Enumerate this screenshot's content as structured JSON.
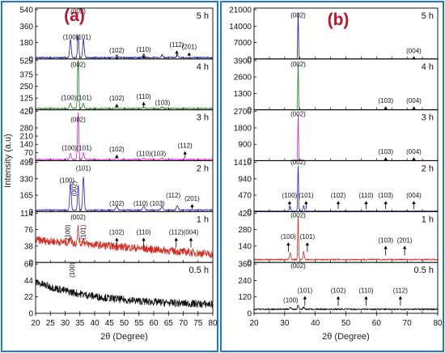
{
  "chart_data": [
    {
      "type": "line",
      "panel_label": "(a)",
      "xlabel": "2θ (Degree)",
      "ylabel": "Intensity (a.u)",
      "xlim": [
        20,
        80
      ],
      "x_ticks": [
        "20",
        "25",
        "30",
        "35",
        "40",
        "45",
        "50",
        "55",
        "60",
        "65",
        "70",
        "75",
        "80"
      ],
      "subplots": [
        {
          "name": "5 h",
          "color": "#1a1aa8",
          "ylim": [
            0,
            540
          ],
          "y_ticks": [
            "0",
            "180",
            "360",
            "540"
          ],
          "baseline": 15,
          "noise": 7,
          "decay": 0,
          "ramp": 0,
          "peaks": [
            [
              31.8,
              200,
              0.25
            ],
            [
              34.4,
              240,
              0.22
            ],
            [
              36.2,
              200,
              0.25
            ],
            [
              47.5,
              25,
              0.3
            ],
            [
              56.6,
              38,
              0.3
            ],
            [
              62.8,
              30,
              0.3
            ],
            [
              68.0,
              28,
              0.3
            ]
          ],
          "annotations": [
            {
              "label": "(100)",
              "x": 31.8,
              "value": 215,
              "arrow": false
            },
            {
              "label": "(002)",
              "x": 34.4,
              "value": 500,
              "arrow": false
            },
            {
              "label": "(101)",
              "x": 36.2,
              "value": 215,
              "arrow": false
            },
            {
              "label": "(102)",
              "x": 47.5,
              "value": 70,
              "arrow": true
            },
            {
              "label": "(110)",
              "x": 56.6,
              "value": 80,
              "arrow": true
            },
            {
              "label": "(112)",
              "x": 67.8,
              "value": 130,
              "arrow": true
            },
            {
              "label": "(201)",
              "x": 72.0,
              "value": 110,
              "arrow": true
            }
          ]
        },
        {
          "name": "4 h",
          "color": "#18851f",
          "ylim": [
            0,
            525
          ],
          "y_ticks": [
            "0",
            "125",
            "250",
            "375",
            "525"
          ],
          "baseline": 15,
          "noise": 6,
          "decay": 0,
          "ramp": 0,
          "peaks": [
            [
              31.8,
              60,
              0.25
            ],
            [
              34.4,
              510,
              0.22
            ],
            [
              36.2,
              55,
              0.25
            ],
            [
              47.5,
              10,
              0.3
            ],
            [
              56.6,
              12,
              0.3
            ],
            [
              62.8,
              15,
              0.3
            ]
          ],
          "annotations": [
            {
              "label": "(100)",
              "x": 31.2,
              "value": 105,
              "arrow": false
            },
            {
              "label": "(002)",
              "x": 34.4,
              "value": 460,
              "arrow": false
            },
            {
              "label": "(101)",
              "x": 36.4,
              "value": 105,
              "arrow": false
            },
            {
              "label": "(102)",
              "x": 47.5,
              "value": 100,
              "arrow": true
            },
            {
              "label": "(110)",
              "x": 56.6,
              "value": 120,
              "arrow": true
            },
            {
              "label": "(103)",
              "x": 63.0,
              "value": 55,
              "arrow": false
            }
          ]
        },
        {
          "name": "3 h",
          "color": "#cc22cc",
          "ylim": [
            0,
            420
          ],
          "y_ticks": [
            "0",
            "70",
            "140",
            "210",
            "280",
            "420"
          ],
          "baseline": 10,
          "noise": 5,
          "decay": 0,
          "ramp": 0,
          "peaks": [
            [
              31.8,
              55,
              0.25
            ],
            [
              34.4,
              400,
              0.22
            ],
            [
              36.2,
              55,
              0.25
            ],
            [
              47.5,
              15,
              0.3
            ],
            [
              56.6,
              10,
              0.3
            ],
            [
              62.8,
              10,
              0.3
            ]
          ],
          "annotations": [
            {
              "label": "(002)",
              "x": 34.4,
              "value": 330,
              "arrow": false
            },
            {
              "label": "(100)",
              "x": 31.4,
              "value": 90,
              "arrow": false
            },
            {
              "label": "(101)",
              "x": 36.4,
              "value": 90,
              "arrow": false
            },
            {
              "label": "(102)",
              "x": 47.5,
              "value": 80,
              "arrow": true
            },
            {
              "label": "(110)",
              "x": 56.6,
              "value": 40,
              "arrow": false
            },
            {
              "label": "(103)",
              "x": 61.6,
              "value": 40,
              "arrow": false
            },
            {
              "label": "(112)",
              "x": 70.6,
              "value": 110,
              "arrow": true
            }
          ]
        },
        {
          "name": "2 h",
          "color": "#2222cc",
          "ylim": [
            0,
            495
          ],
          "y_ticks": [
            "0",
            "165",
            "330",
            "495"
          ],
          "baseline": 15,
          "noise": 6,
          "decay": 0,
          "ramp": 0,
          "peaks": [
            [
              31.8,
              270,
              0.25
            ],
            [
              34.4,
              250,
              0.22
            ],
            [
              36.2,
              330,
              0.25
            ],
            [
              47.5,
              40,
              0.3
            ],
            [
              56.6,
              45,
              0.3
            ],
            [
              62.8,
              40,
              0.3
            ],
            [
              68.0,
              45,
              0.3
            ]
          ],
          "annotations": [
            {
              "label": "(100)",
              "x": 30.6,
              "value": 290,
              "arrow": false
            },
            {
              "label": "(002)",
              "x": 33.8,
              "value": 230,
              "arrow": false,
              "rotate": true
            },
            {
              "label": "(101)",
              "x": 36.2,
              "value": 415,
              "arrow": false
            },
            {
              "label": "(102)",
              "x": 47.5,
              "value": 60,
              "arrow": false
            },
            {
              "label": "(110)",
              "x": 55.6,
              "value": 60,
              "arrow": false
            },
            {
              "label": "(103)",
              "x": 61.2,
              "value": 60,
              "arrow": false
            },
            {
              "label": "(112)",
              "x": 66.6,
              "value": 140,
              "arrow": false
            },
            {
              "label": "(201)",
              "x": 73.0,
              "value": 110,
              "arrow": true
            }
          ]
        },
        {
          "name": "1 h",
          "color": "#d42a1e",
          "ylim": [
            0,
            114
          ],
          "y_ticks": [
            "0",
            "38",
            "76",
            "114"
          ],
          "baseline": 52,
          "noise": 9,
          "decay": 0,
          "ramp": -0.55,
          "peaks": [
            [
              31.8,
              12,
              0.3
            ],
            [
              34.4,
              35,
              0.25
            ],
            [
              36.2,
              10,
              0.3
            ]
          ],
          "annotations": [
            {
              "label": "(002)",
              "x": 34.4,
              "value": 100,
              "arrow": false
            },
            {
              "label": "(100)",
              "x": 31.6,
              "value": 70,
              "arrow": false,
              "rotate": true
            },
            {
              "label": "(101)",
              "x": 36.8,
              "value": 70,
              "arrow": false,
              "rotate": true
            },
            {
              "label": "(102)",
              "x": 47.5,
              "value": 65,
              "arrow": true
            },
            {
              "label": "(110)",
              "x": 56.6,
              "value": 65,
              "arrow": true
            },
            {
              "label": "(112)",
              "x": 67.6,
              "value": 65,
              "arrow": true
            },
            {
              "label": "(004)",
              "x": 72.6,
              "value": 65,
              "arrow": true
            }
          ]
        },
        {
          "name": "0.5 h",
          "color": "#111111",
          "ylim": [
            0,
            66
          ],
          "y_ticks": [
            "0",
            "22",
            "44",
            "66"
          ],
          "baseline": 10,
          "noise": 5,
          "decay": 32,
          "ramp": 0,
          "peaks": [],
          "annotations": [
            {
              "label": "(100)",
              "x": 33.2,
              "value": 58,
              "arrow": false,
              "rotate": true
            }
          ]
        }
      ]
    },
    {
      "type": "line",
      "panel_label": "(b)",
      "xlabel": "2θ (Degree)",
      "ylabel": "",
      "xlim": [
        20,
        80
      ],
      "x_ticks": [
        "20",
        "30",
        "40",
        "50",
        "60",
        "70",
        "80"
      ],
      "subplots": [
        {
          "name": "5 h",
          "color": "#1a1aa8",
          "ylim": [
            0,
            21000
          ],
          "y_ticks": [
            "0",
            "7000",
            "14000",
            "21000"
          ],
          "baseline": 50,
          "noise": 20,
          "decay": 0,
          "ramp": 0,
          "peaks": [
            [
              34.4,
              19500,
              0.12
            ]
          ],
          "annotations": [
            {
              "label": "(002)",
              "x": 34.4,
              "value": 17800,
              "arrow": false
            },
            {
              "label": "(004)",
              "x": 72.2,
              "value": 2600,
              "arrow": true
            }
          ]
        },
        {
          "name": "4 h",
          "color": "#18851f",
          "ylim": [
            0,
            3900
          ],
          "y_ticks": [
            "0",
            "1300",
            "2600",
            "3900"
          ],
          "baseline": 15,
          "noise": 6,
          "decay": 0,
          "ramp": 0,
          "peaks": [
            [
              34.4,
              3650,
              0.12
            ]
          ],
          "annotations": [
            {
              "label": "(002)",
              "x": 34.4,
              "value": 3450,
              "arrow": false
            },
            {
              "label": "(103)",
              "x": 63.0,
              "value": 550,
              "arrow": true
            },
            {
              "label": "(004)",
              "x": 72.2,
              "value": 550,
              "arrow": true
            }
          ]
        },
        {
          "name": "3 h",
          "color": "#cc22cc",
          "ylim": [
            0,
            2700
          ],
          "y_ticks": [
            "0",
            "900",
            "1800",
            "2700"
          ],
          "baseline": 15,
          "noise": 5,
          "decay": 0,
          "ramp": 0,
          "peaks": [
            [
              34.4,
              2500,
              0.12
            ]
          ],
          "annotations": [
            {
              "label": "(002)",
              "x": 34.4,
              "value": 2450,
              "arrow": false
            },
            {
              "label": "(103)",
              "x": 63.0,
              "value": 380,
              "arrow": true
            },
            {
              "label": "(004)",
              "x": 72.2,
              "value": 380,
              "arrow": true
            }
          ]
        },
        {
          "name": "2 h",
          "color": "#2222cc",
          "ylim": [
            0,
            1410
          ],
          "y_ticks": [
            "0",
            "470",
            "940",
            "1410"
          ],
          "baseline": 15,
          "noise": 6,
          "decay": 0,
          "ramp": 0,
          "peaks": [
            [
              31.8,
              130,
              0.2
            ],
            [
              34.4,
              1300,
              0.14
            ],
            [
              36.2,
              160,
              0.2
            ]
          ],
          "annotations": [
            {
              "label": "(002)",
              "x": 34.4,
              "value": 1350,
              "arrow": false
            },
            {
              "label": "(100)",
              "x": 31.6,
              "value": 400,
              "arrow": true
            },
            {
              "label": "(101)",
              "x": 37.0,
              "value": 400,
              "arrow": true
            },
            {
              "label": "(102)",
              "x": 47.5,
              "value": 400,
              "arrow": true
            },
            {
              "label": "(110)",
              "x": 56.6,
              "value": 400,
              "arrow": true
            },
            {
              "label": "(103)",
              "x": 63.0,
              "value": 400,
              "arrow": true
            },
            {
              "label": "(004)",
              "x": 72.2,
              "value": 400,
              "arrow": true
            }
          ]
        },
        {
          "name": "1 h",
          "color": "#d42a1e",
          "ylim": [
            0,
            420
          ],
          "y_ticks": [
            "0",
            "140",
            "280",
            "420"
          ],
          "baseline": 25,
          "noise": 6,
          "decay": 0,
          "ramp": 0,
          "peaks": [
            [
              31.8,
              60,
              0.2
            ],
            [
              34.4,
              360,
              0.14
            ],
            [
              36.2,
              70,
              0.2
            ]
          ],
          "annotations": [
            {
              "label": "(002)",
              "x": 34.4,
              "value": 385,
              "arrow": false
            },
            {
              "label": "(100)",
              "x": 31.2,
              "value": 200,
              "arrow": true
            },
            {
              "label": "(101)",
              "x": 37.4,
              "value": 200,
              "arrow": true
            },
            {
              "label": "(103)",
              "x": 63.0,
              "value": 170,
              "arrow": true
            },
            {
              "label": "(201)",
              "x": 69.2,
              "value": 170,
              "arrow": true
            }
          ]
        },
        {
          "name": "0.5 h",
          "color": "#111111",
          "ylim": [
            0,
            360
          ],
          "y_ticks": [
            "0",
            "120",
            "240",
            "360"
          ],
          "baseline": 30,
          "noise": 6,
          "decay": 0,
          "ramp": 0,
          "peaks": [
            [
              31.8,
              15,
              0.25
            ],
            [
              34.4,
              30,
              0.2
            ],
            [
              36.2,
              15,
              0.25
            ]
          ],
          "annotations": [
            {
              "label": "(002)",
              "x": 34.4,
              "value": 330,
              "arrow": false
            },
            {
              "label": "(100)",
              "x": 32.0,
              "value": 80,
              "arrow": false
            },
            {
              "label": "(101)",
              "x": 36.6,
              "value": 150,
              "arrow": true
            },
            {
              "label": "(102)",
              "x": 47.5,
              "value": 150,
              "arrow": true
            },
            {
              "label": "(110)",
              "x": 56.6,
              "value": 150,
              "arrow": true
            },
            {
              "label": "(112)",
              "x": 67.8,
              "value": 150,
              "arrow": true
            }
          ]
        }
      ]
    }
  ]
}
